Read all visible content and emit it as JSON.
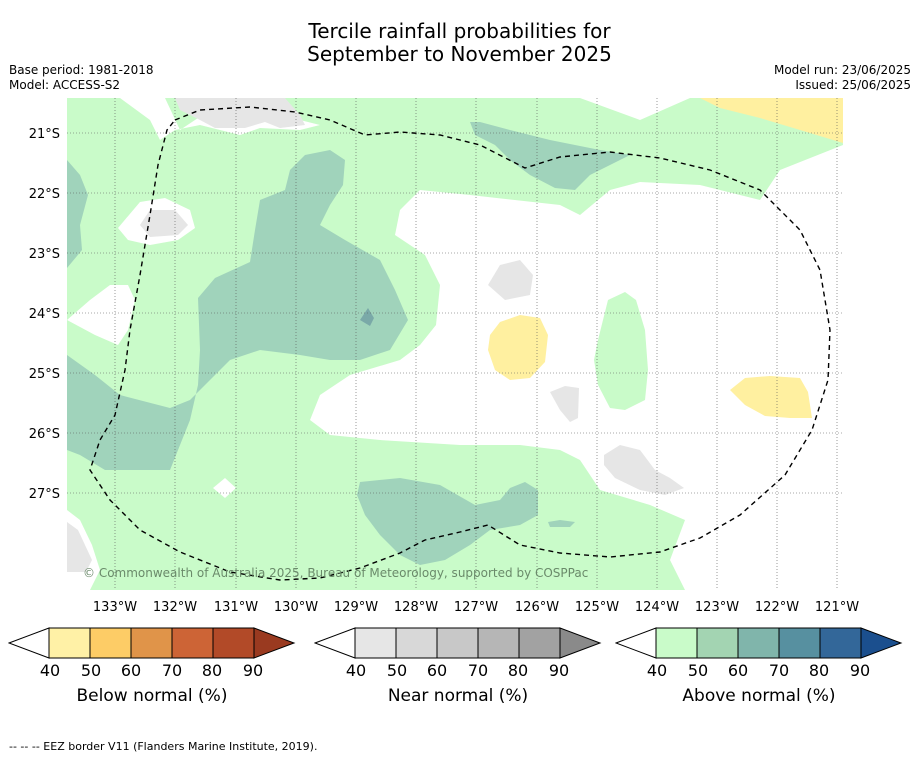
{
  "title_line1": "Tercile rainfall probabilities for",
  "title_line2": "September to November 2025",
  "base_period": "Base period: 1981-2018",
  "model": "Model: ACCESS-S2",
  "model_run": "Model run: 23/06/2025",
  "issued": "Issued: 25/06/2025",
  "copyright": "© Commonwealth of Australia 2025, Bureau of Meteorology, supported by COSPPac",
  "lat_labels": [
    "21°S",
    "22°S",
    "23°S",
    "24°S",
    "25°S",
    "26°S",
    "27°S"
  ],
  "lon_labels": [
    "133°W",
    "132°W",
    "131°W",
    "130°W",
    "129°W",
    "128°W",
    "127°W",
    "126°W",
    "125°W",
    "124°W",
    "123°W",
    "122°W",
    "121°W"
  ],
  "colorbars": [
    {
      "title": "Below normal (%)",
      "ticks": [
        "40",
        "50",
        "60",
        "70",
        "80",
        "90"
      ],
      "colors": [
        "#fff1a6",
        "#fdcc66",
        "#e09449",
        "#cd6436",
        "#b24a28",
        "#9a3a20"
      ]
    },
    {
      "title": "Near normal (%)",
      "ticks": [
        "40",
        "50",
        "60",
        "70",
        "80",
        "90"
      ],
      "colors": [
        "#e6e6e6",
        "#d8d8d8",
        "#c8c8c8",
        "#b6b6b6",
        "#a2a2a2",
        "#8a8a8a"
      ]
    },
    {
      "title": "Above normal (%)",
      "ticks": [
        "40",
        "50",
        "60",
        "70",
        "80",
        "90"
      ],
      "colors": [
        "#c9fbc9",
        "#a3d4b2",
        "#80b5ab",
        "#5790a0",
        "#336799",
        "#1b4f8e"
      ]
    }
  ],
  "footnote": "--  --  -- EEZ border V11 (Flanders Marine Institute, 2019).",
  "colors": {
    "above_40": "#c9fbc9",
    "above_50": "#a0d3bb",
    "above_60": "#7aa9a8",
    "below_40": "#fff0a0",
    "near_40": "#e6e6e6"
  }
}
